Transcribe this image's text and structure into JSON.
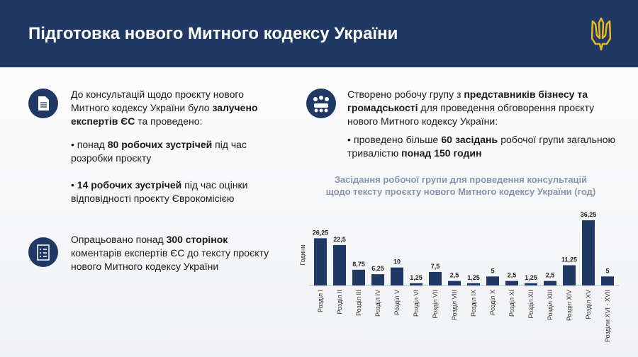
{
  "header": {
    "title": "Підготовка нового Митного кодексу України"
  },
  "left": {
    "blocks": [
      {
        "paragraphs": [
          {
            "parts": [
              {
                "text": "До консультацій щодо проєкту нового Митного кодексу України було ",
                "bold": false
              },
              {
                "text": "залучено експертів ЄС",
                "bold": true
              },
              {
                "text": " та проведено:",
                "bold": false
              }
            ]
          },
          {
            "parts": [
              {
                "text": "• понад ",
                "bold": false
              },
              {
                "text": "80 робочих зустрічей",
                "bold": true
              },
              {
                "text": " під час розробки проєкту",
                "bold": false
              }
            ]
          },
          {
            "parts": [
              {
                "text": "• ",
                "bold": false
              },
              {
                "text": "14 робочих зустрічей",
                "bold": true
              },
              {
                "text": " під час оцінки відповідності проєкту Єврокомісією",
                "bold": false
              }
            ]
          }
        ]
      },
      {
        "paragraphs": [
          {
            "parts": [
              {
                "text": "Опрацьовано понад ",
                "bold": false
              },
              {
                "text": "300 сторінок",
                "bold": true
              },
              {
                "text": " коментарів експертів ЄС до тексту проєкту нового Митного кодексу України",
                "bold": false
              }
            ]
          }
        ]
      }
    ]
  },
  "right": {
    "paragraphs": [
      {
        "parts": [
          {
            "text": "Створено робочу групу з ",
            "bold": false
          },
          {
            "text": "представників бізнесу та громадськості",
            "bold": true
          },
          {
            "text": " для проведення обговорення проєкту нового Митного кодексу України:",
            "bold": false
          }
        ]
      },
      {
        "parts": [
          {
            "text": "• проведено більше ",
            "bold": false
          },
          {
            "text": "60 засідань",
            "bold": true
          },
          {
            "text": " робочої групи загальною тривалістю ",
            "bold": false
          },
          {
            "text": "понад 150 годин",
            "bold": true
          }
        ]
      }
    ]
  },
  "chart": {
    "type": "bar",
    "title": "Засідання робочої групи для проведення консультацій щодо тексту проєкту нового Митного кодексу України (год)",
    "ylabel": "Години",
    "color": "#1f3864",
    "categories": [
      "Розділ I",
      "Розділ II",
      "Розділ III",
      "Розділ IV",
      "Розділ V",
      "Розділ VI",
      "Розділ VII",
      "Розділ VIII",
      "Розділ IX",
      "Розділ X",
      "Розділ XI",
      "Розділ XII",
      "Розділ XIII",
      "Розділ XIV",
      "Розділ XV",
      "Розділи XVI - XVII"
    ],
    "values": [
      26.25,
      22.5,
      8.75,
      6.25,
      10,
      1.25,
      7.5,
      2.5,
      1.25,
      5,
      2.5,
      1.25,
      2.5,
      11.25,
      36.25,
      5
    ],
    "value_labels": [
      "26,25",
      "22,5",
      "8,75",
      "6,25",
      "10",
      "1,25",
      "7,5",
      "2,5",
      "1,25",
      "5",
      "2,5",
      "1,25",
      "2,5",
      "11,25",
      "36,25",
      "5"
    ]
  }
}
